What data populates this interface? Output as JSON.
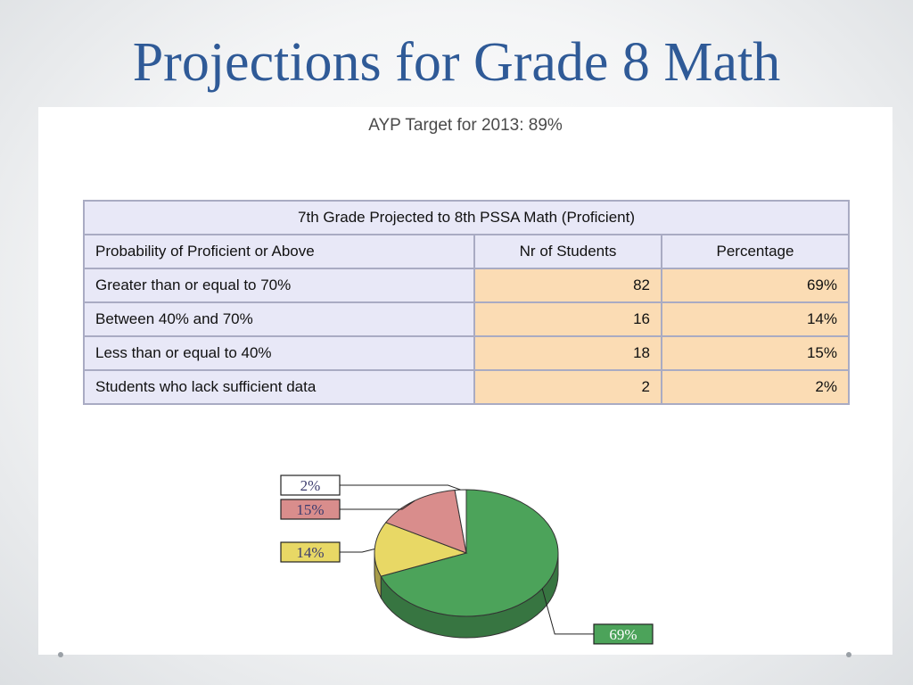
{
  "slide": {
    "title": "Projections for Grade 8 Math"
  },
  "panel": {
    "ayp_target": "AYP Target for 2013: 89%"
  },
  "table": {
    "caption": "7th Grade Projected to 8th PSSA Math (Proficient)",
    "headers": [
      "Probability of Proficient or Above",
      "Nr of Students",
      "Percentage"
    ],
    "rows": [
      [
        "Greater than or equal to 70%",
        "82",
        "69%"
      ],
      [
        "Between 40% and 70%",
        "16",
        "14%"
      ],
      [
        "Less than or equal to 40%",
        "18",
        "15%"
      ],
      [
        "Students who lack sufficient data",
        "2",
        "2%"
      ]
    ]
  },
  "chart_data": {
    "type": "pie",
    "style": "3d",
    "slices": [
      {
        "label": "69%",
        "value": 69,
        "color": "#4ca35a",
        "label_bg": "#4ca35a",
        "label_color": "#ffffff"
      },
      {
        "label": "14%",
        "value": 14,
        "color": "#e8d865",
        "label_bg": "#e8d865",
        "label_color": "#3c3c6e"
      },
      {
        "label": "15%",
        "value": 15,
        "color": "#d98d8c",
        "label_bg": "#d98d8c",
        "label_color": "#3c3c6e"
      },
      {
        "label": "2%",
        "value": 2,
        "color": "#ffffff",
        "label_bg": "#ffffff",
        "label_color": "#3c3c6e"
      }
    ]
  }
}
